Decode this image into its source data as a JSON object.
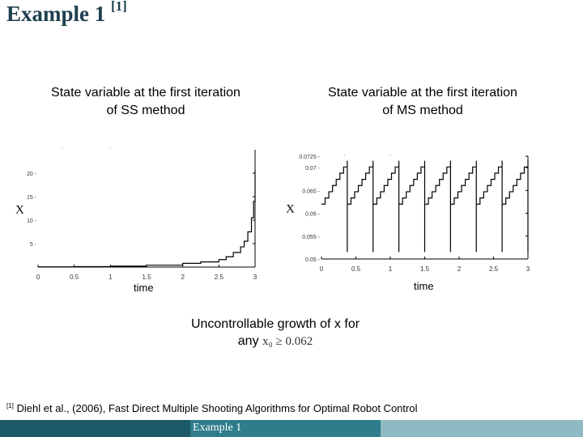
{
  "slide": {
    "title": "Example 1",
    "title_ref": "[1]",
    "statement_line1": "Uncontrollable growth of x for",
    "statement_any": "any",
    "statement_condition": "x₀ ≥ 0.062",
    "footnote_ref": "[1]",
    "footnote_text": "Diehl et al., (2006), Fast Direct Multiple Shooting Algorithms for  Optimal Robot Control",
    "footer_label": "Example 1"
  },
  "colors": {
    "title": "#1f3f4f",
    "footer_dark": "#1b5a66",
    "footer_mid": "#2e7c8c",
    "footer_light": "#8fb9c3"
  },
  "chart_data": [
    {
      "type": "line",
      "title_line1": "State variable at the first iteration",
      "title_line2": "of SS method",
      "xlabel": "time",
      "ylabel": "X",
      "xlim": [
        0,
        3
      ],
      "ylim": [
        0,
        25
      ],
      "xticks": [
        "0",
        "0.5",
        "1",
        "1.5",
        "2",
        "2.5",
        "3"
      ],
      "yticks": [
        "5",
        "10",
        "15",
        "20"
      ],
      "series": [
        {
          "x": [
            0,
            0.5,
            1,
            1.5,
            2,
            2.25,
            2.5,
            2.6,
            2.7,
            2.8,
            2.85,
            2.9,
            2.95,
            2.98,
            3.0
          ],
          "y": [
            0.05,
            0.1,
            0.2,
            0.4,
            0.8,
            1.1,
            1.6,
            2.2,
            3.1,
            4.3,
            5.5,
            7.5,
            10.5,
            14.0,
            20.5
          ]
        }
      ]
    },
    {
      "type": "line",
      "title_line1": "State variable at the first iteration",
      "title_line2": "of MS method",
      "xlabel": "time",
      "ylabel": "X",
      "xlim": [
        0,
        3
      ],
      "ylim": [
        0.05,
        0.0725
      ],
      "xticks": [
        "0",
        "0.5",
        "1",
        "1.5",
        "2",
        "2.5",
        "3"
      ],
      "yticks": [
        "0.05",
        "0.055",
        "0.06",
        "0.065",
        "0.07",
        "0.0725"
      ],
      "series": [
        {
          "segments": 8,
          "start": 0.062,
          "end": 0.0715,
          "reset": 0.0515
        }
      ]
    }
  ]
}
